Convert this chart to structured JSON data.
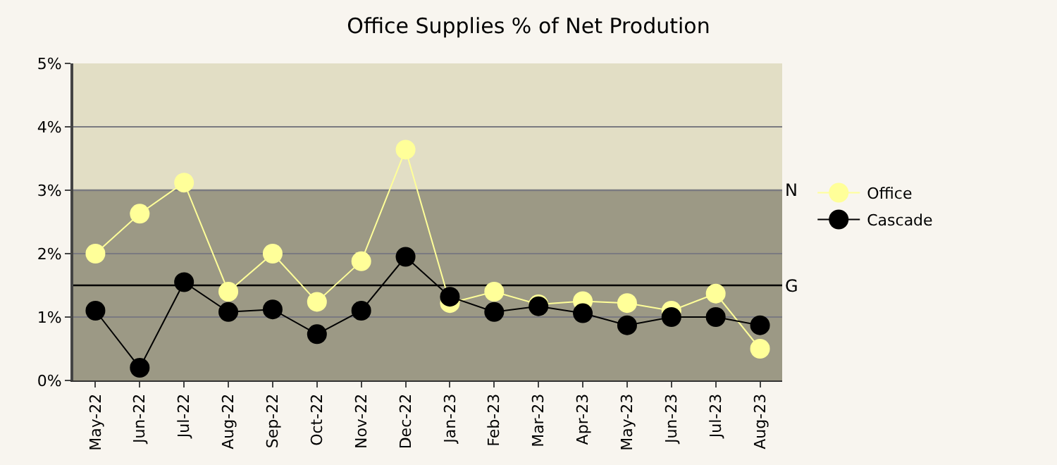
{
  "chart_data": {
    "type": "line",
    "title": "Office Supplies % of Net Prodution",
    "categories": [
      "May-22",
      "Jun-22",
      "Jul-22",
      "Aug-22",
      "Sep-22",
      "Oct-22",
      "Nov-22",
      "Dec-22",
      "Jan-23",
      "Feb-23",
      "Mar-23",
      "Apr-23",
      "May-23",
      "Jun-23",
      "Jul-23",
      "Aug-23"
    ],
    "series": [
      {
        "name": "Office",
        "color": "#ffff99",
        "values": [
          2.0,
          2.63,
          3.12,
          1.4,
          2.0,
          1.24,
          1.88,
          3.64,
          1.22,
          1.4,
          1.2,
          1.25,
          1.22,
          1.1,
          1.37,
          0.5
        ]
      },
      {
        "name": "Cascade",
        "color": "#000000",
        "values": [
          1.1,
          0.2,
          1.55,
          1.08,
          1.12,
          0.73,
          1.1,
          1.95,
          1.32,
          1.08,
          1.17,
          1.06,
          0.87,
          1.0,
          1.0,
          0.87
        ]
      }
    ],
    "ylim": [
      0,
      5
    ],
    "yticks": [
      {
        "value": 0,
        "label": "0%"
      },
      {
        "value": 1,
        "label": "1%"
      },
      {
        "value": 2,
        "label": "2%"
      },
      {
        "value": 3,
        "label": "3%"
      },
      {
        "value": 4,
        "label": "4%"
      },
      {
        "value": 5,
        "label": "5%"
      }
    ],
    "bands": [
      {
        "axis": "y",
        "from": 0,
        "to": 3,
        "color": "#9c9985"
      },
      {
        "axis": "y",
        "from": 3,
        "to": 5,
        "color": "#e2dec5"
      }
    ],
    "ref_lines": [
      {
        "axis": "y",
        "value": 3,
        "label": "N",
        "color": "#808080"
      },
      {
        "axis": "y",
        "value": 1.5,
        "label": "G",
        "color": "#000000"
      }
    ],
    "grid": "y",
    "legend": "right",
    "marker": "circle",
    "line_style": "solid"
  }
}
